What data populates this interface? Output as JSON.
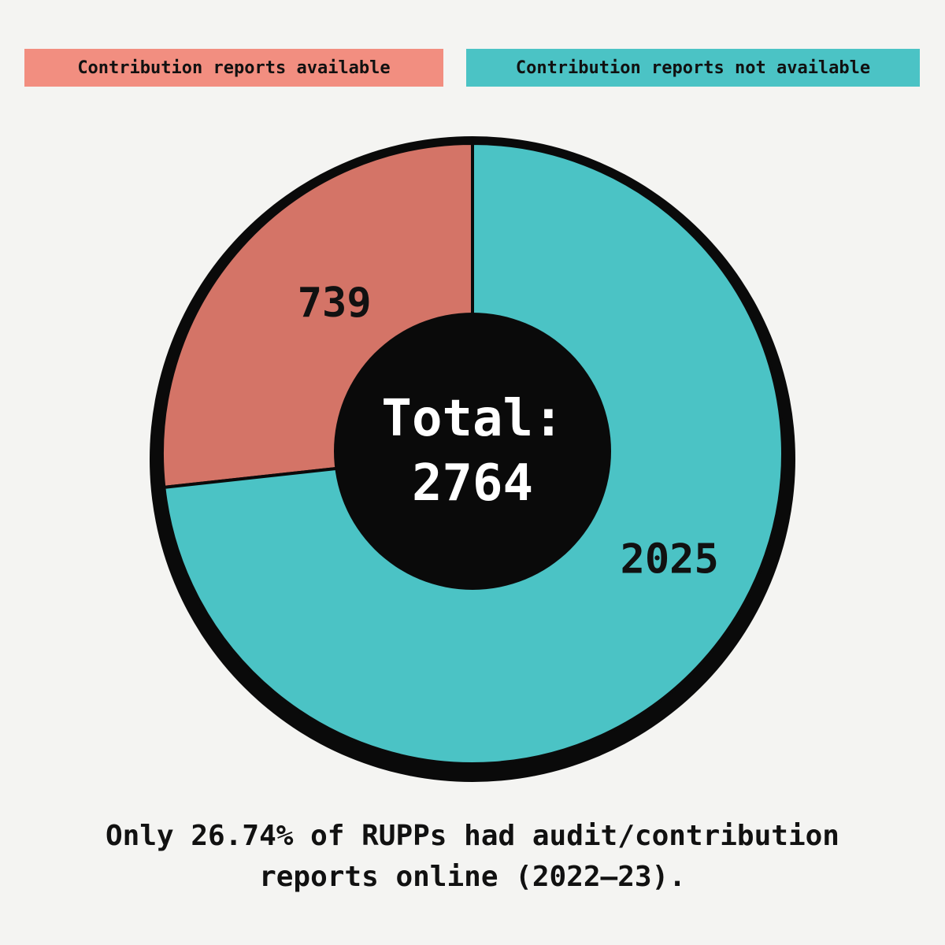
{
  "legend": {
    "available_label": "Contribution reports available",
    "not_available_label": "Contribution reports not available"
  },
  "center": {
    "line1": "Total:",
    "line2": "2764"
  },
  "caption": {
    "line1": "Only 26.74% of RUPPs had audit/contribution",
    "line2": "reports online (2022–23)."
  },
  "colors": {
    "available": "#d47467",
    "available_legend": "#f28e80",
    "not_available": "#4bc3c5",
    "outline": "#0a0a0a",
    "background": "#f4f4f2"
  },
  "chart_data": {
    "type": "pie",
    "variant": "donut",
    "total": 2764,
    "slices": [
      {
        "name": "Contribution reports available",
        "value": 739,
        "label": "739",
        "color": "#d47467"
      },
      {
        "name": "Contribution reports not available",
        "value": 2025,
        "label": "2025",
        "color": "#4bc3c5"
      }
    ],
    "legend_position": "top"
  }
}
